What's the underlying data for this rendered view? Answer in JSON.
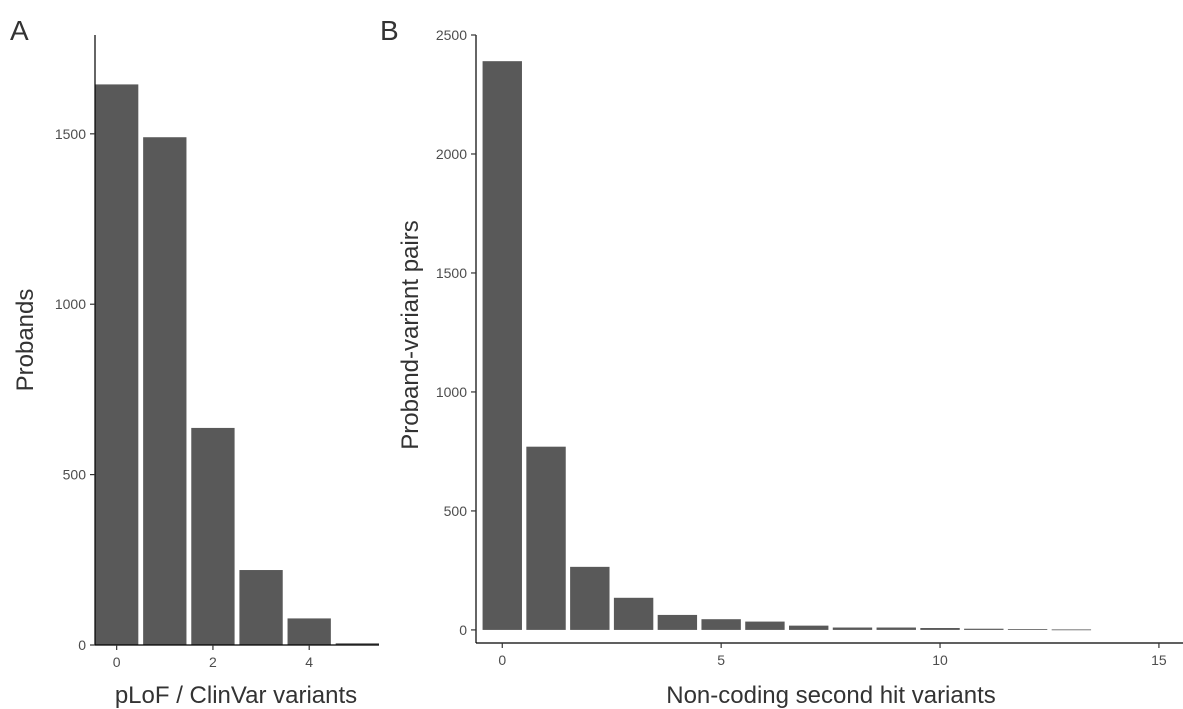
{
  "chart_data": [
    {
      "type": "bar",
      "panel_label": "A",
      "x": [
        0,
        1,
        2,
        3,
        4,
        5
      ],
      "values": [
        1645,
        1490,
        637,
        220,
        78,
        5
      ],
      "xlabel": "pLoF / ClinVar variants",
      "ylabel": "Probands",
      "xticks": [
        0,
        2,
        4
      ],
      "yticks": [
        0,
        500,
        1000,
        1500
      ],
      "xlim": [
        -0.45,
        5.45
      ],
      "ylim": [
        0,
        1790
      ],
      "bar_color": "#595959",
      "grid": false,
      "legend": "none"
    },
    {
      "type": "bar",
      "panel_label": "B",
      "x": [
        0,
        1,
        2,
        3,
        4,
        5,
        6,
        7,
        8,
        9,
        10,
        11,
        12,
        13
      ],
      "values": [
        2390,
        770,
        265,
        135,
        63,
        45,
        35,
        18,
        10,
        10,
        8,
        5,
        3,
        2
      ],
      "xlabel": "Non-coding second hit variants",
      "ylabel": "Proband-variant pairs",
      "xticks": [
        0,
        5,
        10,
        15
      ],
      "yticks": [
        0,
        500,
        1000,
        1500,
        2000,
        2500
      ],
      "xlim": [
        -0.6,
        15.55
      ],
      "ylim": [
        -55,
        2500
      ],
      "bar_color": "#595959",
      "grid": false,
      "legend": "none"
    }
  ]
}
